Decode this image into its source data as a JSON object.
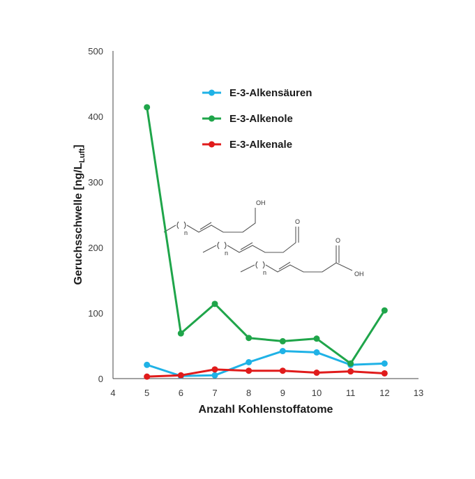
{
  "chart_data": {
    "type": "line",
    "title": "",
    "xlabel": "Anzahl Kohlenstoffatome",
    "ylabel": {
      "main": "Geruchsschwelle  [ng/L",
      "sub": "Luft",
      "close": "]"
    },
    "xlim": [
      4,
      13
    ],
    "ylim": [
      0,
      500
    ],
    "xticks": [
      4,
      5,
      6,
      7,
      8,
      9,
      10,
      11,
      12,
      13
    ],
    "yticks": [
      0,
      100,
      200,
      300,
      400,
      500
    ],
    "grid": false,
    "legend_position": "top-center",
    "series": [
      {
        "name": "E-3-Alkensäuren",
        "color": "#1fb2e6",
        "x": [
          5,
          6,
          7,
          8,
          9,
          10,
          11,
          12
        ],
        "y": [
          21,
          4,
          5,
          25,
          42,
          40,
          21,
          23
        ]
      },
      {
        "name": "E-3-Alkenole",
        "color": "#1fa54a",
        "x": [
          5,
          6,
          7,
          8,
          9,
          10,
          11,
          12
        ],
        "y": [
          414,
          69,
          114,
          62,
          57,
          61,
          23,
          104
        ]
      },
      {
        "name": "E-3-Alkenale",
        "color": "#e01b1b",
        "x": [
          5,
          6,
          7,
          8,
          9,
          10,
          11,
          12
        ],
        "y": [
          3,
          5,
          14,
          12,
          12,
          9,
          11,
          8
        ]
      }
    ],
    "structure_labels": {
      "alcohol_oh": "OH",
      "aldehyde_o": "O",
      "acid_o": "O",
      "acid_oh": "OH",
      "repeat_n": "n"
    }
  }
}
